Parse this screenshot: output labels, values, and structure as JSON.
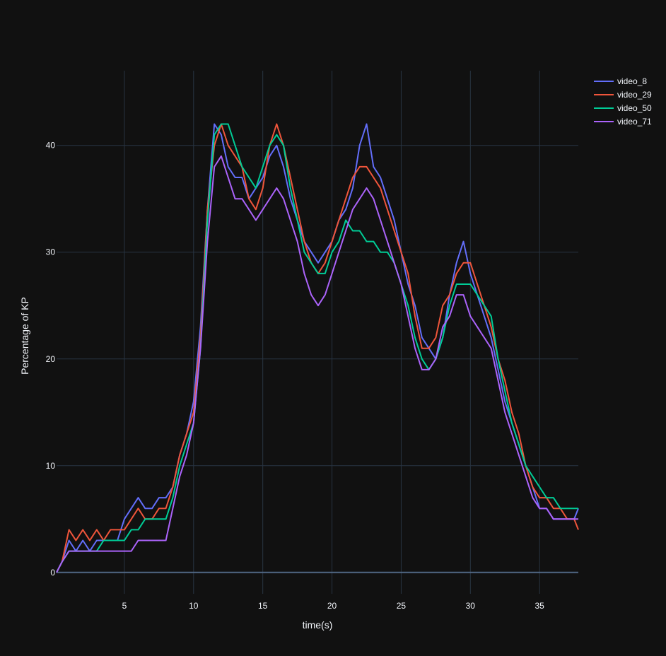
{
  "chart_data": {
    "type": "line",
    "xlabel": "time(s)",
    "ylabel": "Percentage of KP",
    "xlim": [
      0.1,
      37.8
    ],
    "ylim": [
      -2,
      47
    ],
    "xticks": [
      5,
      10,
      15,
      20,
      25,
      30,
      35
    ],
    "yticks": [
      0,
      10,
      20,
      30,
      40
    ],
    "grid": true,
    "legend_position": "top-right",
    "colors": {
      "background": "#111111",
      "grid": "#283442",
      "zeroline": "#506784",
      "text": "#f2f5fa"
    },
    "series": [
      {
        "name": "video_8",
        "color": "#636efa",
        "x": [
          0.1,
          0.5,
          1,
          1.5,
          2,
          2.5,
          3,
          3.5,
          4,
          4.5,
          5,
          5.5,
          6,
          6.5,
          7,
          7.5,
          8,
          8.5,
          9,
          9.5,
          10,
          10.5,
          11,
          11.5,
          12,
          12.5,
          13,
          13.5,
          14,
          14.5,
          15,
          15.5,
          16,
          16.5,
          17,
          17.5,
          18,
          18.5,
          19,
          19.5,
          20,
          20.5,
          21,
          21.5,
          22,
          22.5,
          23,
          23.5,
          24,
          24.5,
          25,
          25.5,
          26,
          26.5,
          27,
          27.5,
          28,
          28.5,
          29,
          29.5,
          30,
          30.5,
          31,
          31.5,
          32,
          32.5,
          33,
          33.5,
          34,
          34.5,
          35,
          35.5,
          36,
          36.5,
          37,
          37.5,
          37.8
        ],
        "values": [
          0,
          1,
          3,
          2,
          3,
          2,
          3,
          3,
          3,
          3,
          5,
          6,
          7,
          6,
          6,
          7,
          7,
          8,
          11,
          13,
          16,
          23,
          34,
          42,
          41,
          38,
          37,
          37,
          35,
          36,
          37,
          39,
          40,
          38,
          35,
          33,
          31,
          30,
          29,
          30,
          31,
          33,
          34,
          36,
          40,
          42,
          38,
          37,
          35,
          33,
          30,
          27,
          25,
          22,
          21,
          20,
          22,
          26,
          29,
          31,
          28,
          26,
          24,
          22,
          19,
          16,
          14,
          12,
          10,
          8,
          6,
          6,
          5,
          5,
          5,
          5,
          6
        ]
      },
      {
        "name": "video_29",
        "color": "#ef553b",
        "x": [
          0.1,
          0.5,
          1,
          1.5,
          2,
          2.5,
          3,
          3.5,
          4,
          4.5,
          5,
          5.5,
          6,
          6.5,
          7,
          7.5,
          8,
          8.5,
          9,
          9.5,
          10,
          10.5,
          11,
          11.5,
          12,
          12.5,
          13,
          13.5,
          14,
          14.5,
          15,
          15.5,
          16,
          16.5,
          17,
          17.5,
          18,
          18.5,
          19,
          19.5,
          20,
          20.5,
          21,
          21.5,
          22,
          22.5,
          23,
          23.5,
          24,
          24.5,
          25,
          25.5,
          26,
          26.5,
          27,
          27.5,
          28,
          28.5,
          29,
          29.5,
          30,
          30.5,
          31,
          31.5,
          32,
          32.5,
          33,
          33.5,
          34,
          34.5,
          35,
          35.5,
          36,
          36.5,
          37,
          37.5,
          37.8
        ],
        "values": [
          0,
          1,
          4,
          3,
          4,
          3,
          4,
          3,
          4,
          4,
          4,
          5,
          6,
          5,
          5,
          6,
          6,
          8,
          11,
          13,
          15,
          22,
          34,
          40,
          42,
          40,
          39,
          38,
          35,
          34,
          36,
          40,
          42,
          40,
          37,
          34,
          31,
          29,
          28,
          29,
          31,
          33,
          35,
          37,
          38,
          38,
          37,
          36,
          34,
          32,
          30,
          28,
          24,
          21,
          21,
          22,
          25,
          26,
          28,
          29,
          29,
          27,
          25,
          23,
          20,
          18,
          15,
          13,
          10,
          8,
          7,
          7,
          6,
          6,
          5,
          5,
          4
        ]
      },
      {
        "name": "video_50",
        "color": "#00cc96",
        "x": [
          0.1,
          0.5,
          1,
          1.5,
          2,
          2.5,
          3,
          3.5,
          4,
          4.5,
          5,
          5.5,
          6,
          6.5,
          7,
          7.5,
          8,
          8.5,
          9,
          9.5,
          10,
          10.5,
          11,
          11.5,
          12,
          12.5,
          13,
          13.5,
          14,
          14.5,
          15,
          15.5,
          16,
          16.5,
          17,
          17.5,
          18,
          18.5,
          19,
          19.5,
          20,
          20.5,
          21,
          21.5,
          22,
          22.5,
          23,
          23.5,
          24,
          24.5,
          25,
          25.5,
          26,
          26.5,
          27,
          27.5,
          28,
          28.5,
          29,
          29.5,
          30,
          30.5,
          31,
          31.5,
          32,
          32.5,
          33,
          33.5,
          34,
          34.5,
          35,
          35.5,
          36,
          36.5,
          37,
          37.5,
          37.8
        ],
        "values": [
          0,
          1,
          2,
          2,
          2,
          2,
          2,
          3,
          3,
          3,
          3,
          4,
          4,
          5,
          5,
          5,
          5,
          7,
          10,
          12,
          14,
          21,
          33,
          41,
          42,
          42,
          40,
          38,
          37,
          36,
          38,
          40,
          41,
          40,
          36,
          33,
          30,
          29,
          28,
          28,
          30,
          31,
          33,
          32,
          32,
          31,
          31,
          30,
          30,
          29,
          27,
          25,
          22,
          20,
          19,
          20,
          22,
          25,
          27,
          27,
          27,
          26,
          25,
          24,
          20,
          17,
          14,
          12,
          10,
          9,
          8,
          7,
          7,
          6,
          6,
          6,
          6
        ]
      },
      {
        "name": "video_71",
        "color": "#ab63fa",
        "x": [
          0.1,
          0.5,
          1,
          1.5,
          2,
          2.5,
          3,
          3.5,
          4,
          4.5,
          5,
          5.5,
          6,
          6.5,
          7,
          7.5,
          8,
          8.5,
          9,
          9.5,
          10,
          10.5,
          11,
          11.5,
          12,
          12.5,
          13,
          13.5,
          14,
          14.5,
          15,
          15.5,
          16,
          16.5,
          17,
          17.5,
          18,
          18.5,
          19,
          19.5,
          20,
          20.5,
          21,
          21.5,
          22,
          22.5,
          23,
          23.5,
          24,
          24.5,
          25,
          25.5,
          26,
          26.5,
          27,
          27.5,
          28,
          28.5,
          29,
          29.5,
          30,
          30.5,
          31,
          31.5,
          32,
          32.5,
          33,
          33.5,
          34,
          34.5,
          35,
          35.5,
          36,
          36.5,
          37,
          37.5,
          37.8
        ],
        "values": [
          0,
          1,
          2,
          2,
          2,
          2,
          2,
          2,
          2,
          2,
          2,
          2,
          3,
          3,
          3,
          3,
          3,
          6,
          9,
          11,
          14,
          21,
          31,
          38,
          39,
          37,
          35,
          35,
          34,
          33,
          34,
          35,
          36,
          35,
          33,
          31,
          28,
          26,
          25,
          26,
          28,
          30,
          32,
          34,
          35,
          36,
          35,
          33,
          31,
          29,
          27,
          24,
          21,
          19,
          19,
          20,
          23,
          24,
          26,
          26,
          24,
          23,
          22,
          21,
          18,
          15,
          13,
          11,
          9,
          7,
          6,
          6,
          5,
          5,
          5,
          5,
          5
        ]
      }
    ]
  }
}
